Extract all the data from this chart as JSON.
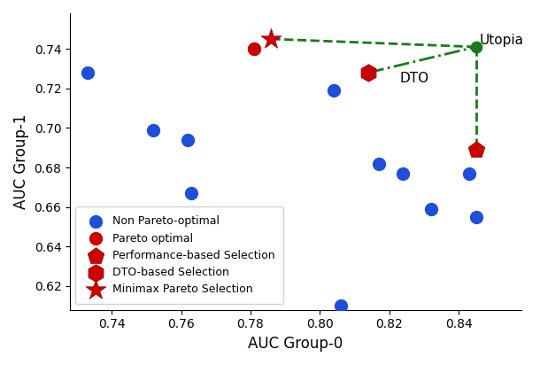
{
  "blue_points": [
    [
      0.733,
      0.728
    ],
    [
      0.752,
      0.699
    ],
    [
      0.762,
      0.694
    ],
    [
      0.763,
      0.667
    ],
    [
      0.781,
      0.74
    ],
    [
      0.804,
      0.719
    ],
    [
      0.806,
      0.61
    ],
    [
      0.817,
      0.682
    ],
    [
      0.824,
      0.677
    ],
    [
      0.832,
      0.659
    ],
    [
      0.843,
      0.677
    ],
    [
      0.845,
      0.655
    ]
  ],
  "pareto_circle": [
    0.781,
    0.74
  ],
  "performance_pentagon": [
    0.845,
    0.689
  ],
  "dto_hexagon": [
    0.814,
    0.728
  ],
  "minimax_star": [
    0.786,
    0.745
  ],
  "utopia": [
    0.845,
    0.741
  ],
  "utopia_label": "Utopia",
  "dto_label": "DTO",
  "xlabel": "AUC Group-0",
  "ylabel": "AUC Group-1",
  "xlim": [
    0.728,
    0.858
  ],
  "ylim": [
    0.608,
    0.758
  ],
  "xticks": [
    0.74,
    0.76,
    0.78,
    0.8,
    0.82,
    0.84
  ],
  "yticks": [
    0.62,
    0.64,
    0.66,
    0.68,
    0.7,
    0.72,
    0.74
  ],
  "blue_color": "#1f4fd8",
  "red_color": "#cc0000",
  "green_color": "#1a7a1a",
  "legend_labels": [
    "Non Pareto-optimal",
    "Pareto optimal",
    "Performance-based Selection",
    "DTO-based Selection",
    "Minimax Pareto Selection"
  ]
}
